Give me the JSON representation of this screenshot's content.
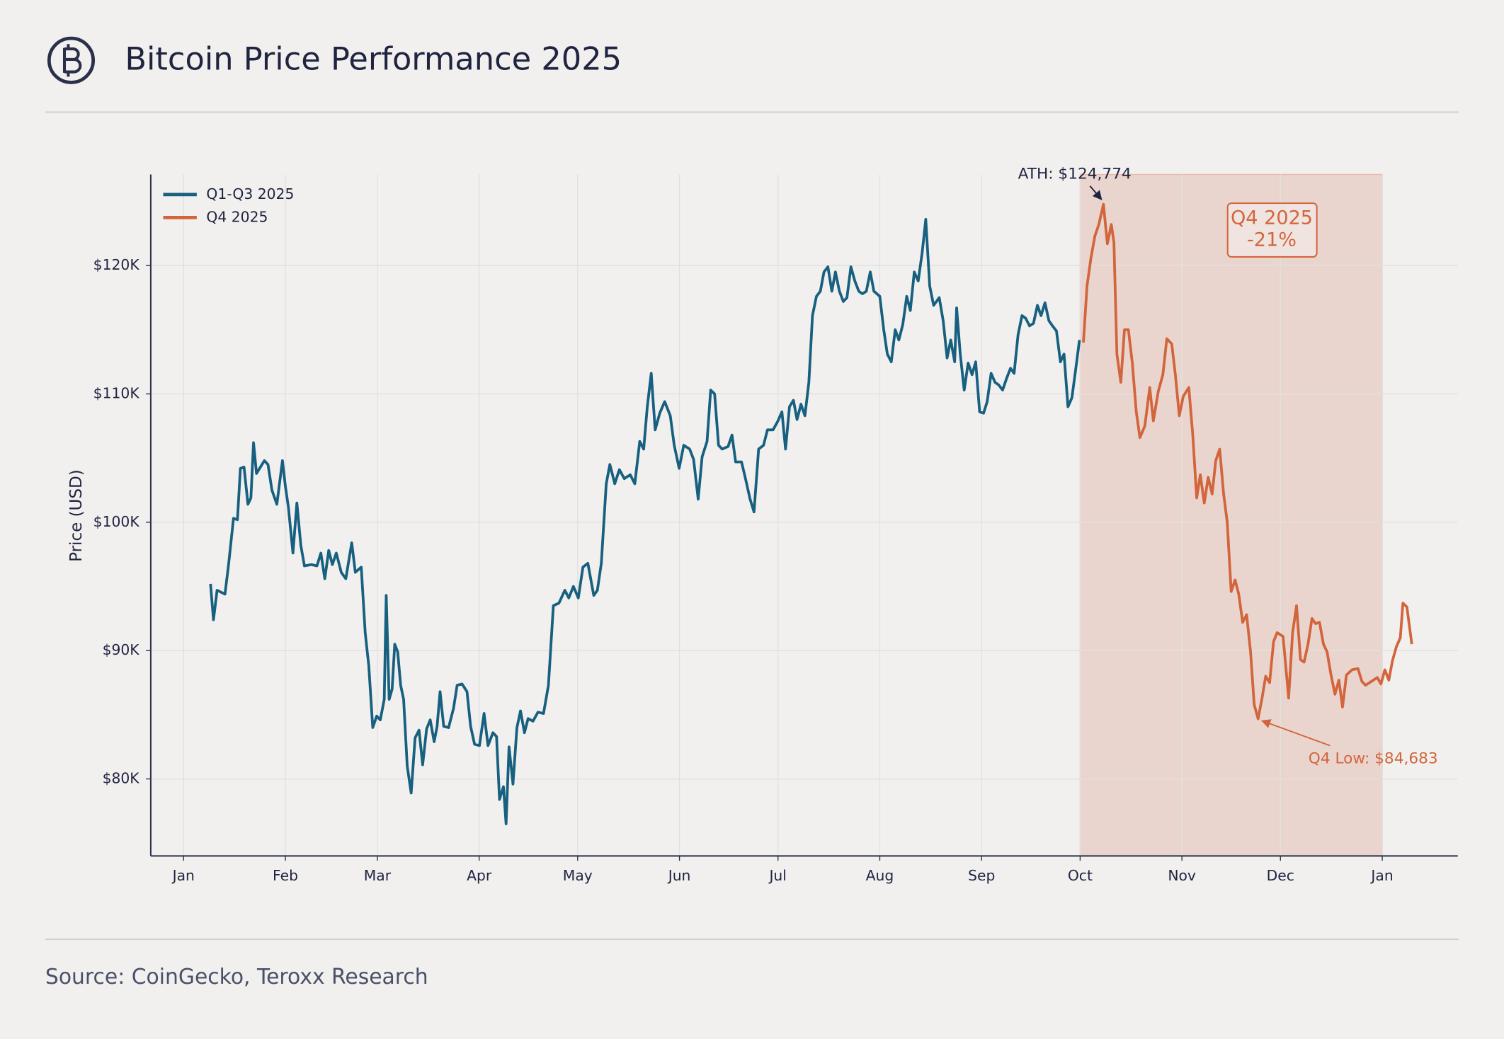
{
  "chart_data": {
    "type": "line",
    "title": "Bitcoin Price Performance 2025",
    "ylabel": "Price (USD)",
    "source": "Source: CoinGecko, Teroxx Research",
    "legend": "upper left",
    "grid": true,
    "xlim": [
      -10,
      388
    ],
    "ylim": [
      74000,
      127100
    ],
    "xticks": [
      {
        "value": 0,
        "label": "Jan"
      },
      {
        "value": 31,
        "label": "Feb"
      },
      {
        "value": 59,
        "label": "Mar"
      },
      {
        "value": 90,
        "label": "Apr"
      },
      {
        "value": 120,
        "label": "May"
      },
      {
        "value": 151,
        "label": "Jun"
      },
      {
        "value": 181,
        "label": "Jul"
      },
      {
        "value": 212,
        "label": "Aug"
      },
      {
        "value": 243,
        "label": "Sep"
      },
      {
        "value": 273,
        "label": "Oct"
      },
      {
        "value": 304,
        "label": "Nov"
      },
      {
        "value": 334,
        "label": "Dec"
      },
      {
        "value": 365,
        "label": "Jan"
      }
    ],
    "yticks": [
      {
        "value": 80000,
        "label": "$80K"
      },
      {
        "value": 90000,
        "label": "$90K"
      },
      {
        "value": 100000,
        "label": "$100K"
      },
      {
        "value": 110000,
        "label": "$110K"
      },
      {
        "value": 120000,
        "label": "$120K"
      }
    ],
    "highlight": {
      "xmin": 273,
      "xmax": 365,
      "color": "#d9917a",
      "label": [
        "Q4 2025",
        "-21%"
      ]
    },
    "annotations": [
      {
        "text": "ATH: $124,774",
        "x": 280.1,
        "y": 124774,
        "color": "#1f2440"
      },
      {
        "text": "Q4 Low: $84,683",
        "x": 327.2,
        "y": 84683,
        "color": "#d2653c"
      }
    ],
    "series": [
      {
        "name": "Q1-Q3 2025",
        "color": "#17607f",
        "x": [
          8.2,
          9.1,
          10.2,
          12.6,
          13.7,
          15.2,
          16.4,
          17.3,
          18.4,
          19.6,
          20.5,
          21.3,
          22.2,
          24.6,
          25.7,
          26.9,
          28.4,
          30.1,
          31.0,
          31.9,
          33.3,
          34.5,
          35.7,
          36.8,
          38.9,
          40.6,
          41.8,
          43.0,
          44.2,
          45.3,
          46.5,
          48.0,
          49.4,
          51.2,
          52.3,
          54.1,
          55.3,
          56.4,
          57.6,
          58.8,
          59.9,
          61.1,
          61.7,
          62.6,
          63.5,
          64.3,
          65.2,
          66.1,
          67.0,
          68.1,
          69.3,
          70.5,
          71.7,
          72.8,
          74.0,
          75.1,
          76.3,
          77.2,
          78.1,
          79.2,
          80.7,
          82.2,
          83.3,
          84.8,
          86.3,
          87.4,
          88.6,
          90.1,
          91.5,
          92.7,
          94.2,
          95.3,
          96.2,
          97.4,
          98.2,
          99.1,
          100.3,
          101.5,
          102.6,
          103.8,
          104.9,
          106.4,
          107.9,
          109.6,
          111.1,
          112.6,
          114.3,
          116.1,
          117.3,
          118.7,
          120.2,
          121.6,
          123.1,
          124.9,
          126.0,
          127.2,
          128.7,
          129.8,
          131.3,
          132.7,
          134.2,
          136.0,
          137.4,
          138.9,
          140.1,
          141.2,
          142.4,
          143.6,
          145.0,
          146.5,
          148.2,
          149.4,
          150.9,
          152.3,
          154.1,
          155.3,
          156.7,
          157.9,
          159.4,
          160.5,
          161.7,
          162.9,
          164.0,
          165.8,
          167.0,
          168.1,
          169.9,
          171.1,
          172.5,
          173.7,
          175.1,
          176.6,
          177.8,
          179.5,
          181.0,
          182.2,
          183.3,
          184.5,
          185.7,
          186.8,
          188.0,
          189.2,
          190.4,
          191.5,
          192.7,
          193.9,
          195.0,
          196.2,
          197.4,
          198.5,
          199.7,
          200.9,
          202.0,
          203.2,
          204.4,
          205.6,
          206.7,
          207.9,
          209.1,
          210.2,
          212.0,
          213.2,
          214.3,
          215.5,
          216.7,
          217.8,
          219.0,
          220.2,
          221.3,
          222.5,
          223.7,
          224.9,
          226.0,
          227.2,
          228.4,
          230.1,
          231.3,
          232.5,
          233.6,
          234.8,
          235.4,
          236.5,
          237.7,
          238.9,
          240.1,
          241.2,
          242.4,
          243.6,
          244.7,
          245.9,
          247.1,
          248.2,
          249.4,
          250.6,
          251.8,
          252.9,
          254.1,
          255.3,
          256.4,
          257.6,
          258.8,
          260.0,
          261.1,
          262.3,
          263.5,
          264.6,
          265.8,
          267.0,
          268.1,
          269.3,
          270.5,
          271.6,
          272.8
        ],
        "values": [
          95200,
          92400,
          94700,
          94400,
          96700,
          100300,
          100200,
          104200,
          104300,
          101400,
          101900,
          106200,
          103800,
          104800,
          104500,
          102500,
          101400,
          104800,
          102800,
          101200,
          97600,
          101500,
          98200,
          96600,
          96700,
          96600,
          97600,
          95600,
          97800,
          96700,
          97600,
          96100,
          95600,
          98400,
          96100,
          96500,
          91400,
          88800,
          84000,
          84900,
          84600,
          86200,
          94300,
          86200,
          87000,
          90500,
          89900,
          87300,
          86200,
          81000,
          78900,
          83200,
          83800,
          81100,
          83900,
          84600,
          82900,
          84100,
          86800,
          84100,
          84000,
          85500,
          87300,
          87400,
          86800,
          84100,
          82700,
          82600,
          85100,
          82600,
          83600,
          83300,
          78400,
          79400,
          76500,
          82500,
          79600,
          84000,
          85300,
          83600,
          84700,
          84500,
          85200,
          85100,
          87300,
          93500,
          93700,
          94700,
          94100,
          95000,
          94100,
          96500,
          96800,
          94300,
          94700,
          96800,
          103000,
          104500,
          103000,
          104100,
          103400,
          103700,
          103000,
          106300,
          105700,
          109000,
          111600,
          107200,
          108500,
          109400,
          108300,
          106000,
          104200,
          106000,
          105700,
          104900,
          101800,
          105100,
          106300,
          110300,
          110000,
          106000,
          105700,
          105900,
          106800,
          104700,
          104700,
          103400,
          101800,
          100800,
          105700,
          106000,
          107200,
          107200,
          107900,
          108600,
          105700,
          109000,
          109500,
          108000,
          109200,
          108300,
          110900,
          116100,
          117600,
          118000,
          119500,
          119900,
          118000,
          119500,
          118000,
          117200,
          117500,
          119900,
          118800,
          118000,
          117800,
          118000,
          119500,
          118000,
          117600,
          115000,
          113100,
          112500,
          115000,
          114200,
          115400,
          117600,
          116500,
          119500,
          118800,
          121000,
          123600,
          118400,
          116900,
          117500,
          115700,
          112800,
          114200,
          112500,
          116700,
          113100,
          110300,
          112400,
          111500,
          112500,
          108600,
          108500,
          109400,
          111600,
          110900,
          110700,
          110300,
          111200,
          112000,
          111600,
          114600,
          116100,
          115900,
          115300,
          115500,
          116900,
          116100,
          117100,
          115700,
          115300,
          114900,
          112500,
          113100,
          109000,
          109700,
          111800,
          114200
        ]
      },
      {
        "name": "Q4 2025",
        "color": "#d2653c",
        "x": [
          274.0,
          275.1,
          276.3,
          277.5,
          278.7,
          280.1,
          281.3,
          282.5,
          283.3,
          284.2,
          285.4,
          286.5,
          287.7,
          288.9,
          290.1,
          291.2,
          292.7,
          294.2,
          295.3,
          296.8,
          298.2,
          299.4,
          300.9,
          302.0,
          303.2,
          304.4,
          306.1,
          307.3,
          308.5,
          309.6,
          310.8,
          312.0,
          313.2,
          314.3,
          315.5,
          316.7,
          317.8,
          319.0,
          320.2,
          321.3,
          322.5,
          323.7,
          324.9,
          326.0,
          327.2,
          328.4,
          329.5,
          330.7,
          331.9,
          333.0,
          334.8,
          336.5,
          337.7,
          338.9,
          340.1,
          341.2,
          342.4,
          343.6,
          344.7,
          345.9,
          347.1,
          348.2,
          349.4,
          350.6,
          351.8,
          352.9,
          354.1,
          355.8,
          357.6,
          358.8,
          359.9,
          361.7,
          363.5,
          364.6,
          365.8,
          367.0,
          368.1,
          369.3,
          370.5,
          371.3,
          372.5,
          374.0
        ],
        "values": [
          114000,
          118400,
          120600,
          122300,
          123200,
          124774,
          121700,
          123200,
          121800,
          113100,
          110900,
          115000,
          115000,
          112400,
          108600,
          106600,
          107500,
          110500,
          107900,
          110200,
          111500,
          114300,
          113900,
          111500,
          108300,
          109800,
          110500,
          106800,
          101900,
          103700,
          101500,
          103500,
          102200,
          104800,
          105700,
          102200,
          100000,
          94600,
          95500,
          94400,
          92200,
          92800,
          89900,
          85800,
          84683,
          86300,
          88000,
          87500,
          90700,
          91400,
          91100,
          86300,
          91400,
          93500,
          89300,
          89100,
          90500,
          92500,
          92100,
          92200,
          90500,
          89900,
          88100,
          86600,
          87700,
          85600,
          88100,
          88500,
          88600,
          87600,
          87300,
          87600,
          87900,
          87400,
          88500,
          87700,
          89200,
          90300,
          91000,
          93700,
          93400,
          90500
        ]
      }
    ]
  }
}
